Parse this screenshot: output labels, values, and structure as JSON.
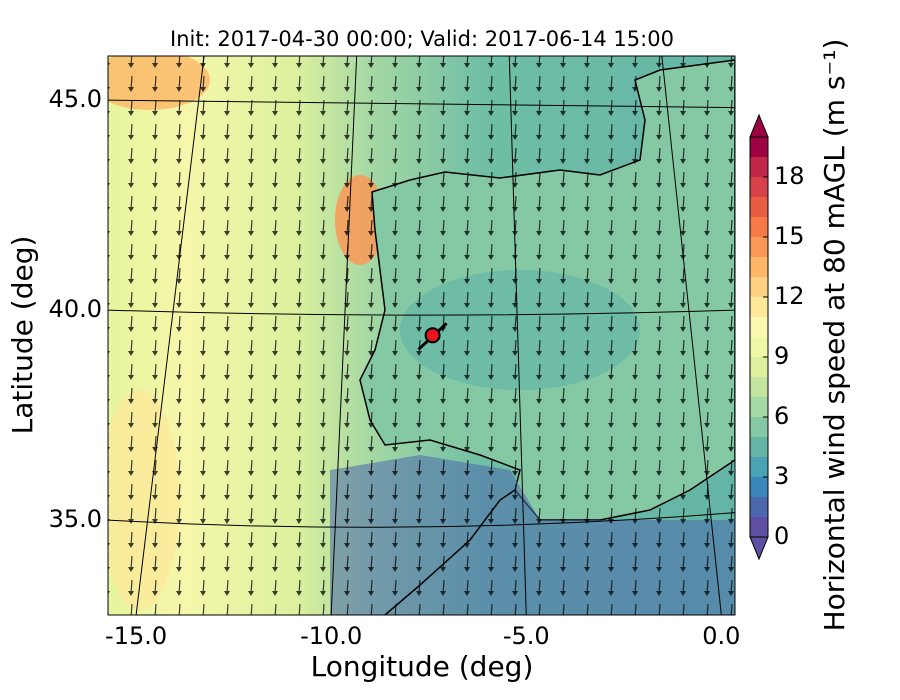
{
  "chart_data": {
    "type": "map",
    "title": "Init: 2017-04-30 00:00; Valid: 2017-06-14 15:00",
    "x_label": "Longitude (deg)",
    "y_label": "Latitude (deg)",
    "xlim": [
      -15.72,
      0.35
    ],
    "ylim": [
      32.74,
      46.05
    ],
    "xticks": [
      {
        "value": -15,
        "label": "-15.0"
      },
      {
        "value": -10,
        "label": "-10.0"
      },
      {
        "value": -5,
        "label": "-5.0"
      },
      {
        "value": 0,
        "label": "0.0"
      }
    ],
    "yticks": [
      {
        "value": 35,
        "label": "35.0"
      },
      {
        "value": 40,
        "label": "40.0"
      },
      {
        "value": 45,
        "label": "45.0"
      }
    ],
    "site": {
      "x": -7.4,
      "y": 39.4,
      "color": "#e8141a"
    },
    "colorbar": {
      "label": "Horizontal wind speed at 80 mAGL (m s⁻¹)",
      "ylim": [
        0,
        20
      ],
      "yticks": [
        0,
        3,
        6,
        9,
        12,
        15,
        18
      ],
      "levels": [
        0,
        1,
        2,
        3,
        4,
        5,
        6,
        7,
        8,
        9,
        10,
        11,
        12,
        13,
        14,
        15,
        16,
        17,
        18,
        19,
        20
      ],
      "colors": [
        "#5e4fa2",
        "#4a68ad",
        "#3c87b9",
        "#4aa3b2",
        "#64b5a6",
        "#85c9a4",
        "#a4d8a4",
        "#c3e5a0",
        "#dcf09d",
        "#eff8a6",
        "#fbf9b0",
        "#fee89a",
        "#fed281",
        "#fdb767",
        "#fa9857",
        "#f57a48",
        "#e85c42",
        "#d7424a",
        "#c12649",
        "#9e0142"
      ],
      "under_color": "#5e4fa2",
      "over_color": "#9e0142"
    }
  }
}
